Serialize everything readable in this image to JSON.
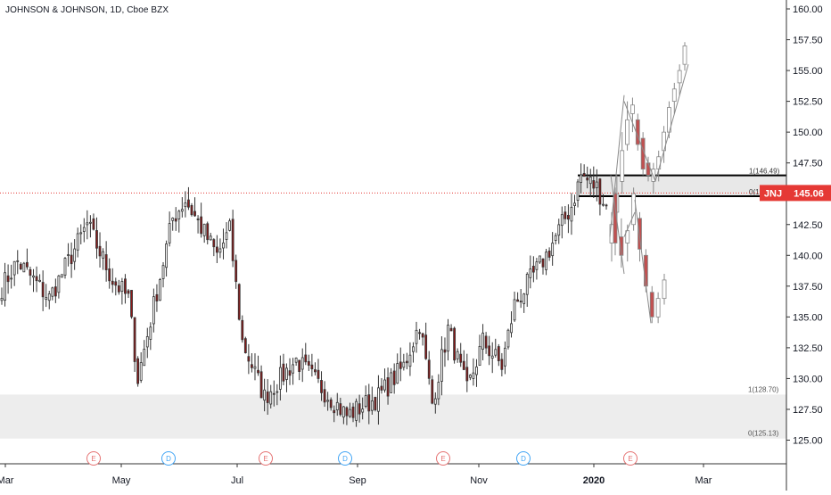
{
  "chart_data": {
    "type": "candlestick",
    "title": "JOHNSON & JOHNSON, 1D, Cboe BZX",
    "symbol": "JNJ",
    "last_price": 145.06,
    "last_price_label": "145.06",
    "ylim": [
      123,
      161
    ],
    "y_ticks": [
      125,
      127.5,
      130,
      132.5,
      135,
      137.5,
      140,
      142.5,
      145,
      147.5,
      150,
      152.5,
      155,
      157.5,
      160
    ],
    "y_tick_labels": [
      "125.00",
      "127.50",
      "130.00",
      "132.50",
      "135.00",
      "137.50",
      "140.00",
      "142.50",
      "145.00",
      "147.50",
      "150.00",
      "152.50",
      "155.00",
      "157.50",
      "160.00"
    ],
    "x_tick_labels": [
      "Mar",
      "May",
      "Jul",
      "Sep",
      "Nov",
      "2020",
      "Mar"
    ],
    "grid": false,
    "colors": {
      "up": "#53b987",
      "down": "#eb4d5c",
      "body_up": "#ffffff",
      "body_down": "#8b1a1a",
      "last_price": "#e53935",
      "zone_fill": "#ededed",
      "projection": "#8a8a8a"
    },
    "events": [
      {
        "label": "E",
        "color": "#e57373"
      },
      {
        "label": "D",
        "color": "#42a5f5"
      },
      {
        "label": "E",
        "color": "#e57373"
      },
      {
        "label": "D",
        "color": "#42a5f5"
      },
      {
        "label": "E",
        "color": "#e57373"
      },
      {
        "label": "D",
        "color": "#42a5f5"
      },
      {
        "label": "E",
        "color": "#e57373"
      }
    ],
    "zones": [
      {
        "top": 146.49,
        "bottom": 144.8,
        "label_top": "1(146.49)",
        "label_bottom": "0(1"
      },
      {
        "top": 128.7,
        "bottom": 125.13,
        "label_top": "1(128.70)",
        "label_bottom": "0(125.13)"
      }
    ],
    "segments": [
      {
        "from": 137,
        "to": 139.5,
        "n": 6
      },
      {
        "from": 139.5,
        "to": 136.5,
        "n": 10
      },
      {
        "from": 136.5,
        "to": 142.5,
        "n": 12
      },
      {
        "from": 142.5,
        "to": 138,
        "n": 8
      },
      {
        "from": 138,
        "to": 136.5,
        "n": 5
      },
      {
        "from": 136.5,
        "to": 130,
        "n": 3
      },
      {
        "from": 130,
        "to": 143,
        "n": 11
      },
      {
        "from": 143,
        "to": 144.5,
        "n": 4
      },
      {
        "from": 144.5,
        "to": 140,
        "n": 10
      },
      {
        "from": 140,
        "to": 142,
        "n": 4
      },
      {
        "from": 142,
        "to": 133,
        "n": 4
      },
      {
        "from": 133,
        "to": 128.5,
        "n": 7
      },
      {
        "from": 128.5,
        "to": 131.5,
        "n": 10
      },
      {
        "from": 131.5,
        "to": 127,
        "n": 16
      },
      {
        "from": 127,
        "to": 128.5,
        "n": 10
      },
      {
        "from": 128.5,
        "to": 131,
        "n": 8
      },
      {
        "from": 131,
        "to": 134.5,
        "n": 5
      },
      {
        "from": 134.5,
        "to": 128,
        "n": 4
      },
      {
        "from": 128,
        "to": 134,
        "n": 5
      },
      {
        "from": 134,
        "to": 129,
        "n": 6
      },
      {
        "from": 129,
        "to": 133,
        "n": 5
      },
      {
        "from": 133,
        "to": 131,
        "n": 6
      },
      {
        "from": 131,
        "to": 136,
        "n": 4
      },
      {
        "from": 136,
        "to": 140,
        "n": 10
      },
      {
        "from": 140,
        "to": 144,
        "n": 8
      },
      {
        "from": 144,
        "to": 146.5,
        "n": 3
      },
      {
        "from": 146.5,
        "to": 145.5,
        "n": 5
      },
      {
        "from": 145.5,
        "to": 144,
        "n": 3
      }
    ],
    "projection_candles": [
      {
        "o": 141.0,
        "h": 143.5,
        "l": 139.5,
        "c": 142.5
      },
      {
        "o": 143.5,
        "h": 146.5,
        "l": 142.0,
        "c": 145.0
      },
      {
        "o": 146.0,
        "h": 150.0,
        "l": 145.0,
        "c": 148.5
      },
      {
        "o": 149.0,
        "h": 152.5,
        "l": 148.5,
        "c": 151.0
      },
      {
        "o": 151.5,
        "h": 152.8,
        "l": 150.0,
        "c": 152.2
      },
      {
        "o": 151.0,
        "h": 151.5,
        "l": 148.5,
        "c": 149.0
      },
      {
        "o": 149.5,
        "h": 150.0,
        "l": 146.5,
        "c": 147.0
      },
      {
        "o": 147.5,
        "h": 148.0,
        "l": 146.0,
        "c": 146.5
      },
      {
        "o": 146.0,
        "h": 147.5,
        "l": 145.0,
        "c": 147.0
      },
      {
        "o": 147.0,
        "h": 148.5,
        "l": 146.0,
        "c": 148.0
      },
      {
        "o": 148.5,
        "h": 150.5,
        "l": 147.5,
        "c": 150.0
      },
      {
        "o": 150.0,
        "h": 152.5,
        "l": 149.5,
        "c": 152.0
      },
      {
        "o": 152.5,
        "h": 154.0,
        "l": 151.5,
        "c": 153.5
      },
      {
        "o": 154.0,
        "h": 155.5,
        "l": 153.0,
        "c": 155.0
      },
      {
        "o": 155.5,
        "h": 157.3,
        "l": 155.0,
        "c": 157.0
      }
    ],
    "projection_down_candles": [
      {
        "o": 145.0,
        "h": 145.5,
        "l": 140.0,
        "c": 141.0
      },
      {
        "o": 141.5,
        "h": 143.0,
        "l": 139.0,
        "c": 140.0
      },
      {
        "o": 141.0,
        "h": 142.5,
        "l": 139.5,
        "c": 142.0
      },
      {
        "o": 142.5,
        "h": 145.5,
        "l": 142.0,
        "c": 145.0
      },
      {
        "o": 143.0,
        "h": 143.5,
        "l": 139.5,
        "c": 140.5
      },
      {
        "o": 140.0,
        "h": 140.5,
        "l": 137.0,
        "c": 137.5
      },
      {
        "o": 137.0,
        "h": 137.5,
        "l": 134.5,
        "c": 135.0
      },
      {
        "o": 135.0,
        "h": 137.0,
        "l": 134.5,
        "c": 136.5
      },
      {
        "o": 136.5,
        "h": 138.5,
        "l": 136.0,
        "c": 138.0
      }
    ],
    "projection_lines": [
      {
        "p1": 141.5,
        "p2": 153.0
      },
      {
        "p1": 152.5,
        "p2": 146.0
      },
      {
        "p1": 146.0,
        "p2": 155.5
      },
      {
        "p1": 146.5,
        "p2": 138.5
      },
      {
        "p1": 141.5,
        "p2": 143.5
      },
      {
        "p1": 144.5,
        "p2": 134.5
      }
    ]
  }
}
